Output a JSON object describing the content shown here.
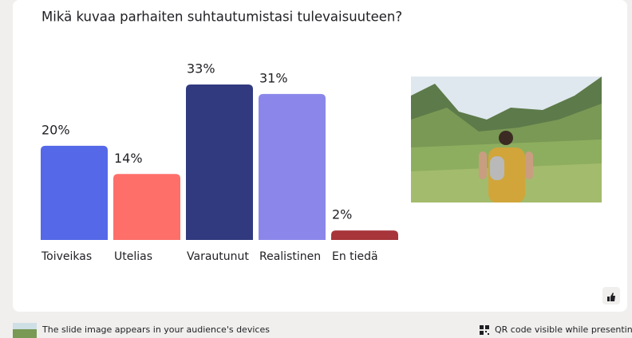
{
  "chart_data": {
    "type": "bar",
    "title": "Mikä kuvaa parhaiten suhtautumistasi tulevaisuuteen?",
    "categories": [
      "Toiveikas",
      "Utelias",
      "Varautunut",
      "Realistinen",
      "En tiedä"
    ],
    "values": [
      20,
      14,
      33,
      31,
      2
    ],
    "value_labels": [
      "20%",
      "14%",
      "33%",
      "31%",
      "2%"
    ],
    "colors": [
      "#5468e8",
      "#fe6f6a",
      "#313a7e",
      "#8b87ea",
      "#a8353a"
    ]
  },
  "footer": {
    "image_note": "The slide image appears in your audience's devices",
    "qr_note": "QR code visible while presenting"
  }
}
